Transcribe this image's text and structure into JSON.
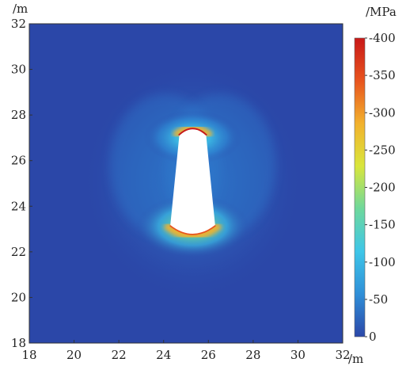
{
  "chart_data": {
    "type": "heatmap",
    "title": "",
    "xlabel": "/m",
    "ylabel": "/m",
    "xlim": [
      18,
      32
    ],
    "ylim": [
      18,
      32
    ],
    "x_ticks": [
      "18",
      "20",
      "22",
      "24",
      "26",
      "28",
      "30",
      "32"
    ],
    "y_ticks": [
      "18",
      "20",
      "22",
      "24",
      "26",
      "28",
      "30",
      "32"
    ],
    "colorbar": {
      "label": "/MPa",
      "range": [
        0,
        -400
      ],
      "ticks": [
        "-400",
        "-350",
        "-300",
        "-250",
        "-200",
        "-150",
        "-100",
        "-50",
        "0"
      ],
      "colors": [
        "#2b47a8",
        "#2f8fd8",
        "#3ec6e8",
        "#6ed89c",
        "#d9e63c",
        "#f2b12d",
        "#e8541e",
        "#c81818"
      ]
    },
    "opening": {
      "shape": "tapered tunnel cross-section",
      "center_x": 25.3,
      "top_y": 27.3,
      "bottom_y": 22.9,
      "top_width": 1.2,
      "bottom_width": 2.0
    },
    "stress_peaks": [
      {
        "location": "roof",
        "x": 25.3,
        "y": 27.2,
        "value": -400
      },
      {
        "location": "floor",
        "x": 25.3,
        "y": 22.9,
        "value": -400
      }
    ],
    "background_value": 0,
    "grid": false
  }
}
